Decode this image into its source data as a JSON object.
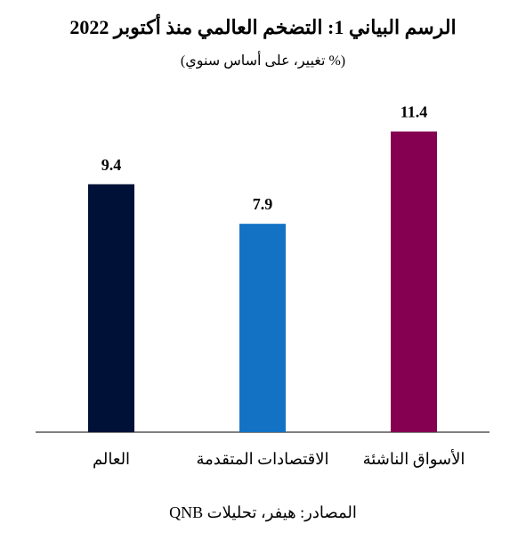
{
  "title": "الرسم البياني 1: التضخم العالمي منذ أكتوبر 2022",
  "subtitle": "(% تغيير، على أساس سنوي)",
  "source": "المصادر: هيفر، تحليلات QNB",
  "colors": {
    "world": "#001137",
    "advanced": "#1472c4",
    "emerging": "#850050",
    "axis": "#000000"
  },
  "chart_data": {
    "type": "bar",
    "categories": [
      "العالم",
      "الاقتصادات المتقدمة",
      "الأسواق الناشئة"
    ],
    "values": [
      9.4,
      7.9,
      11.4
    ],
    "value_labels": [
      "9.4",
      "7.9",
      "11.4"
    ],
    "title": "الرسم البياني 1: التضخم العالمي منذ أكتوبر 2022",
    "ylim": [
      0,
      12.5
    ],
    "grid": false,
    "legend": "none"
  }
}
